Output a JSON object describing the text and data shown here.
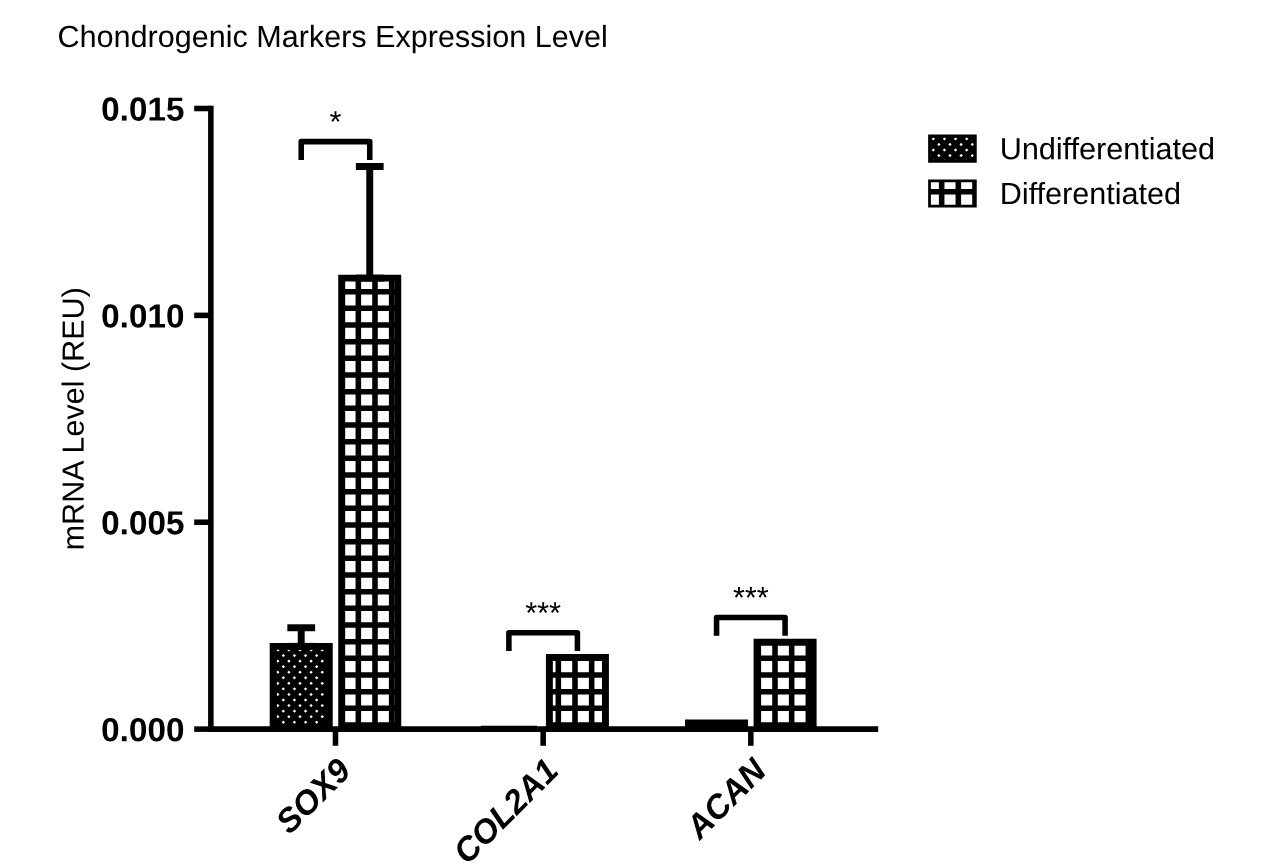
{
  "chart_data": {
    "type": "bar",
    "title": "Chondrogenic Markers Expression Level",
    "ylabel": "mRNA Level (REU)",
    "categories": [
      "SOX9",
      "COL2A1",
      "ACAN"
    ],
    "series": [
      {
        "name": "Undifferentiated",
        "color": "#000000",
        "values": [
          0.002,
          0.0,
          0.00015
        ],
        "errors": [
          0.00045,
          null,
          null
        ]
      },
      {
        "name": "Differentiated",
        "color": "#000000",
        "values": [
          0.0109,
          0.00173,
          0.0021
        ],
        "errors": [
          0.0027,
          null,
          null
        ]
      }
    ],
    "ylim": [
      0,
      0.015
    ],
    "yticks": [
      {
        "value": 0,
        "label": "0.000"
      },
      {
        "value": 0.005,
        "label": "0.005"
      },
      {
        "value": 0.01,
        "label": "0.010"
      },
      {
        "value": 0.015,
        "label": "0.015"
      }
    ],
    "annotations": [
      "*",
      "***",
      "***"
    ],
    "legend": "top right",
    "grid": false
  }
}
